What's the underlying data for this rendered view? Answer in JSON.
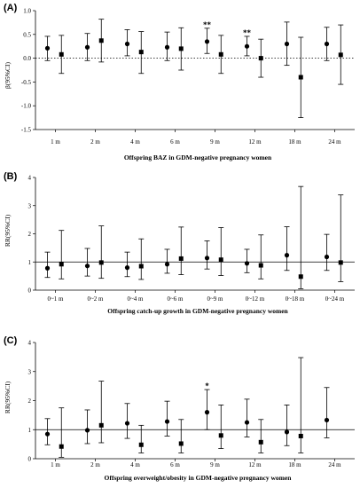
{
  "figure": {
    "panels": [
      {
        "letter": "(A)",
        "ylabel": "β(95%CI)",
        "xlabel": "Offspring BAZ in GDM-negative pregnancy women"
      },
      {
        "letter": "(B)",
        "ylabel": "RR(95%CI)",
        "xlabel": "Offspring catch-up growth in GDM-negative pregnancy women"
      },
      {
        "letter": "(C)",
        "ylabel": "RR(95%CI)",
        "xlabel": "Offspring overweight/obesity in GDM-negative pregnancy women"
      }
    ]
  },
  "chart_data": [
    {
      "type": "errorbar",
      "panel": "(A)",
      "xlabel": "Offspring BAZ in GDM-negative pregnancy women",
      "ylabel": "β(95%CI)",
      "categories": [
        "1 m",
        "2 m",
        "4 m",
        "6 m",
        "9 m",
        "12 m",
        "18 m",
        "24 m"
      ],
      "ylim": [
        -1.5,
        1.0
      ],
      "yticks": [
        1.0,
        0.5,
        0.0,
        -0.5,
        -1.0,
        -1.5
      ],
      "ytick_labels": [
        "1.0",
        "0.5",
        "0.0",
        "-0.5",
        "-1.0",
        "-1.5"
      ],
      "reference_line": {
        "value": 0,
        "style": "dotted"
      },
      "series": [
        {
          "marker": "circle",
          "values": [
            0.21,
            0.23,
            0.3,
            0.23,
            0.35,
            0.25,
            0.3,
            0.3
          ],
          "lower": [
            -0.05,
            -0.05,
            0.05,
            -0.05,
            0.1,
            0.05,
            -0.15,
            -0.05
          ],
          "upper": [
            0.46,
            0.52,
            0.6,
            0.55,
            0.63,
            0.46,
            0.76,
            0.65
          ]
        },
        {
          "marker": "square",
          "values": [
            0.08,
            0.37,
            0.13,
            0.2,
            0.08,
            0.0,
            -0.4,
            0.07
          ],
          "lower": [
            -0.32,
            -0.08,
            -0.32,
            -0.25,
            -0.32,
            -0.4,
            -1.25,
            -0.55
          ],
          "upper": [
            0.48,
            0.82,
            0.56,
            0.64,
            0.48,
            0.4,
            0.44,
            0.7
          ]
        }
      ],
      "annotations": [
        {
          "category": "9 m",
          "text": "**"
        },
        {
          "category": "12 m",
          "text": "**"
        }
      ]
    },
    {
      "type": "errorbar",
      "panel": "(B)",
      "xlabel": "Offspring catch-up growth in GDM-negative pregnancy women",
      "ylabel": "RR(95%CI)",
      "categories": [
        "0~1 m",
        "0~2 m",
        "0~4 m",
        "0~6 m",
        "0~9 m",
        "0~12 m",
        "0~18 m",
        "0~24 m"
      ],
      "ylim": [
        0,
        4
      ],
      "yticks": [
        0,
        1,
        2,
        3,
        4
      ],
      "ytick_labels": [
        "0",
        "1",
        "2",
        "3",
        "4"
      ],
      "reference_line": {
        "value": 1,
        "style": "solid"
      },
      "series": [
        {
          "marker": "circle",
          "values": [
            0.78,
            0.86,
            0.8,
            0.92,
            1.14,
            0.95,
            1.24,
            1.18
          ],
          "lower": [
            0.45,
            0.5,
            0.48,
            0.6,
            0.75,
            0.62,
            0.7,
            0.7
          ],
          "upper": [
            1.35,
            1.48,
            1.35,
            1.45,
            1.75,
            1.45,
            2.25,
            1.98
          ]
        },
        {
          "marker": "square",
          "values": [
            0.92,
            0.98,
            0.85,
            1.12,
            1.08,
            0.88,
            0.48,
            0.98
          ],
          "lower": [
            0.4,
            0.42,
            0.38,
            0.55,
            0.52,
            0.4,
            0.05,
            0.3
          ],
          "upper": [
            2.12,
            2.28,
            1.82,
            2.24,
            2.22,
            1.96,
            3.68,
            3.38
          ]
        }
      ]
    },
    {
      "type": "errorbar",
      "panel": "(C)",
      "xlabel": "Offspring overweight/obesity in GDM-negative pregnancy women",
      "ylabel": "RR(95%CI)",
      "categories": [
        "1 m",
        "2 m",
        "4 m",
        "6 m",
        "9 m",
        "12 m",
        "18 m",
        "24 m"
      ],
      "ylim": [
        0,
        4
      ],
      "yticks": [
        0,
        1,
        2,
        3,
        4
      ],
      "ytick_labels": [
        "0",
        "1",
        "2",
        "3",
        "4"
      ],
      "reference_line": {
        "value": 1,
        "style": "solid"
      },
      "series": [
        {
          "marker": "circle",
          "values": [
            0.85,
            0.98,
            1.22,
            1.28,
            1.6,
            1.25,
            0.92,
            1.33
          ],
          "lower": [
            0.48,
            0.52,
            0.7,
            0.78,
            1.0,
            0.75,
            0.45,
            0.72
          ],
          "upper": [
            1.38,
            1.68,
            1.9,
            1.98,
            2.38,
            2.05,
            1.85,
            2.45
          ]
        },
        {
          "marker": "square",
          "values": [
            0.42,
            1.15,
            0.48,
            0.52,
            0.8,
            0.57,
            0.78,
            null
          ],
          "lower": [
            0.05,
            0.55,
            0.2,
            0.2,
            0.35,
            0.2,
            0.2,
            null
          ],
          "upper": [
            1.75,
            2.67,
            1.15,
            1.35,
            1.85,
            1.35,
            3.48,
            null
          ]
        }
      ],
      "annotations": [
        {
          "category": "9 m",
          "text": "*"
        }
      ]
    }
  ]
}
